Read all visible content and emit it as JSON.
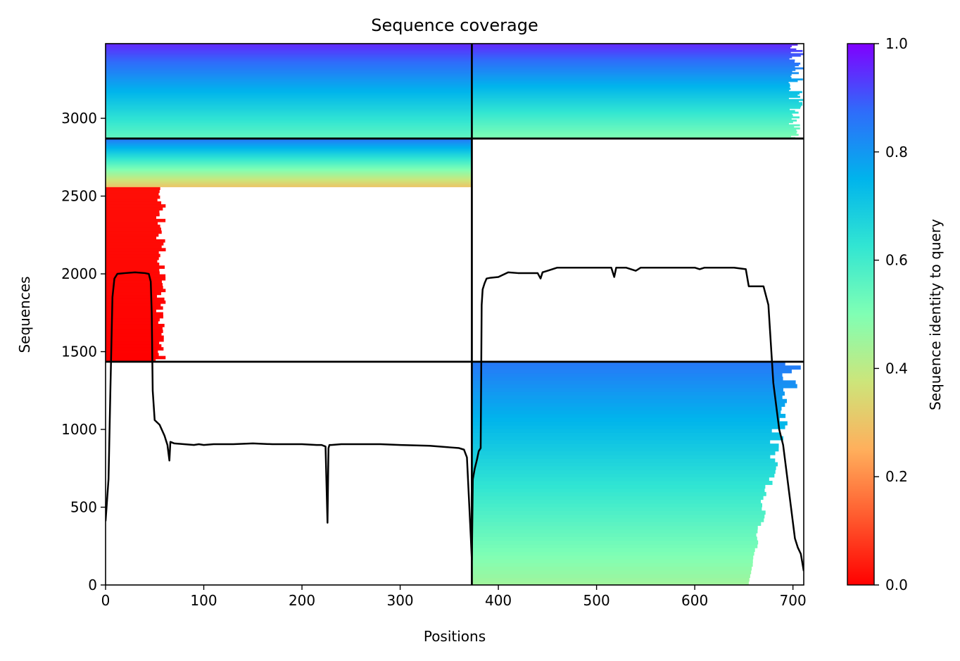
{
  "chart_data": {
    "type": "heatmap",
    "title": "Sequence coverage",
    "xlabel": "Positions",
    "ylabel": "Sequences",
    "xlim": [
      0,
      711
    ],
    "ylim": [
      0,
      3480
    ],
    "x_ticks": [
      0,
      100,
      200,
      300,
      400,
      500,
      600,
      700
    ],
    "y_ticks": [
      0,
      500,
      1000,
      1500,
      2000,
      2500,
      3000
    ],
    "colorbar": {
      "label": "Sequence identity to query",
      "colormap": "rainbow_r",
      "range": [
        0,
        1
      ],
      "ticks": [
        "0.0",
        "0.2",
        "0.4",
        "0.6",
        "0.8",
        "1.0"
      ]
    },
    "chain_boundary_x": [
      373
    ],
    "group_boundary_y": [
      1435,
      2870
    ],
    "grid": false,
    "blocks": [
      {
        "x": [
          0,
          47
        ],
        "y": [
          1435,
          2560
        ],
        "identity": [
          0.0,
          0.02
        ],
        "ragged_end_x": [
          40,
          62
        ]
      },
      {
        "x": [
          373,
          711
        ],
        "y": [
          0,
          1435
        ],
        "identity": [
          0.45,
          0.85
        ],
        "ragged_end_x": [
          655,
          711
        ]
      },
      {
        "x": [
          0,
          373
        ],
        "y": [
          2560,
          2870
        ],
        "identity": [
          0.3,
          0.85
        ]
      },
      {
        "x": [
          0,
          373
        ],
        "y": [
          2870,
          3480
        ],
        "identity": [
          0.55,
          0.95
        ]
      },
      {
        "x": [
          373,
          711
        ],
        "y": [
          2870,
          3480
        ],
        "identity": [
          0.5,
          0.95
        ],
        "ragged_end_x": [
          680,
          711
        ]
      }
    ],
    "coverage_line": {
      "x": [
        0,
        3,
        5,
        7,
        9,
        12,
        20,
        30,
        40,
        44,
        46,
        47,
        48,
        50,
        55,
        60,
        63,
        64,
        65,
        66,
        70,
        80,
        90,
        95,
        100,
        110,
        130,
        150,
        170,
        200,
        215,
        220,
        224,
        226,
        227,
        228,
        230,
        240,
        260,
        280,
        300,
        330,
        350,
        360,
        365,
        368,
        370,
        372,
        373,
        374,
        376,
        378,
        380,
        382,
        383,
        384,
        386,
        388,
        392,
        400,
        410,
        420,
        430,
        440,
        443,
        445,
        450,
        460,
        470,
        480,
        500,
        515,
        518,
        520,
        525,
        530,
        540,
        545,
        550,
        570,
        590,
        600,
        605,
        610,
        620,
        640,
        652,
        655,
        660,
        670,
        675,
        678,
        680,
        682,
        684,
        686,
        690,
        694,
        698,
        700,
        702,
        705,
        708,
        711
      ],
      "y": [
        410,
        680,
        1280,
        1850,
        1970,
        2000,
        2005,
        2010,
        2005,
        2000,
        1950,
        1750,
        1250,
        1060,
        1030,
        960,
        900,
        850,
        800,
        920,
        910,
        905,
        900,
        905,
        900,
        905,
        905,
        910,
        905,
        905,
        900,
        900,
        890,
        400,
        880,
        900,
        900,
        905,
        905,
        905,
        900,
        895,
        885,
        880,
        870,
        820,
        560,
        300,
        160,
        680,
        750,
        800,
        860,
        880,
        1800,
        1900,
        1940,
        1970,
        1975,
        1980,
        2010,
        2005,
        2005,
        2005,
        1970,
        2010,
        2020,
        2040,
        2040,
        2040,
        2040,
        2040,
        1980,
        2040,
        2040,
        2040,
        2020,
        2040,
        2040,
        2040,
        2040,
        2040,
        2030,
        2040,
        2040,
        2040,
        2030,
        1920,
        1920,
        1920,
        1800,
        1500,
        1300,
        1200,
        1100,
        1000,
        900,
        700,
        500,
        400,
        300,
        240,
        200,
        90
      ]
    }
  }
}
